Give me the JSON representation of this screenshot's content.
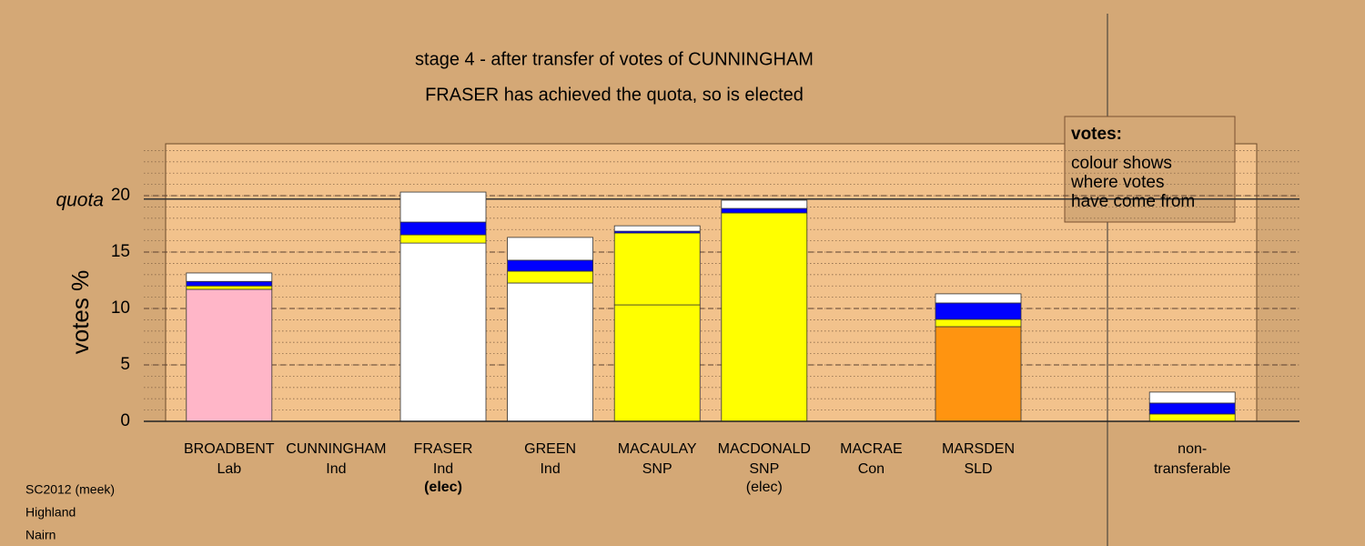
{
  "chart_data": {
    "type": "stacked-bar",
    "title": "stage 4 - after transfer of votes of CUNNINGHAM",
    "subtitle": "FRASER has achieved the quota, so is elected",
    "y_label": "votes %",
    "quota_label": "quota",
    "quota": 19.7,
    "ylim": [
      0,
      24.6
    ],
    "yticks": [
      0,
      5,
      10,
      15,
      20
    ],
    "minor_grid_step": 1,
    "grid": true,
    "categories": [
      "BROADBENT",
      "CUNNINGHAM",
      "FRASER",
      "GREEN",
      "MACAULAY",
      "MACDONALD",
      "MACRAE",
      "MARSDEN",
      null,
      "non-"
    ],
    "parties": [
      "Lab",
      "Ind",
      "Ind",
      "Ind",
      "SNP",
      "SNP",
      "Con",
      "SLD",
      null,
      "transferable"
    ],
    "notes": [
      null,
      null,
      {
        "text": "(elec)",
        "bold": true
      },
      null,
      null,
      {
        "text": "(elec)",
        "bold": false
      },
      null,
      null,
      null,
      null
    ],
    "stacks": [
      [
        {
          "color": "#ffb6c8",
          "value": 11.7
        },
        {
          "color": "#ffff00",
          "value": 0.3
        },
        {
          "color": "#0000ff",
          "value": 0.4
        },
        {
          "color": "#ffffff",
          "value": 0.75
        }
      ],
      [
        {
          "color": "#ffffff",
          "value": 0
        }
      ],
      [
        {
          "color": "#ffffff",
          "value": 15.8
        },
        {
          "color": "#ffff00",
          "value": 0.73
        },
        {
          "color": "#0000ff",
          "value": 1.13
        },
        {
          "color": "#ffffff",
          "value": 2.66
        }
      ],
      [
        {
          "color": "#ffffff",
          "value": 12.26
        },
        {
          "color": "#ffff00",
          "value": 1.05
        },
        {
          "color": "#0000ff",
          "value": 0.97
        },
        {
          "color": "#ffffff",
          "value": 2.02
        }
      ],
      [
        {
          "color": "#ffff00",
          "value": 10.32
        },
        {
          "color": "#ffff00",
          "value": 6.37
        },
        {
          "color": "#0000ff",
          "value": 0.16
        },
        {
          "color": "#ffffff",
          "value": 0.48
        }
      ],
      [
        {
          "color": "#ffff00",
          "value": 18.47
        },
        {
          "color": "#0000ff",
          "value": 0.4
        },
        {
          "color": "#ffffff",
          "value": 0.73
        }
      ],
      [
        {
          "color": "#1e90ff",
          "value": 0
        }
      ],
      [
        {
          "color": "#ff9410",
          "value": 8.39
        },
        {
          "color": "#ffff00",
          "value": 0.65
        },
        {
          "color": "#0000ff",
          "value": 1.45
        },
        {
          "color": "#ffffff",
          "value": 0.81
        }
      ],
      [],
      [
        {
          "color": "#ffff00",
          "value": 0.65
        },
        {
          "color": "#0000ff",
          "value": 0.97
        },
        {
          "color": "#ffffff",
          "value": 0.97
        }
      ]
    ],
    "legend_box": {
      "heading": "votes:",
      "lines": [
        "colour shows",
        "where votes",
        "have come from"
      ]
    },
    "footer": [
      "SC2012 (meek)",
      "Highland",
      "Nairn"
    ]
  }
}
